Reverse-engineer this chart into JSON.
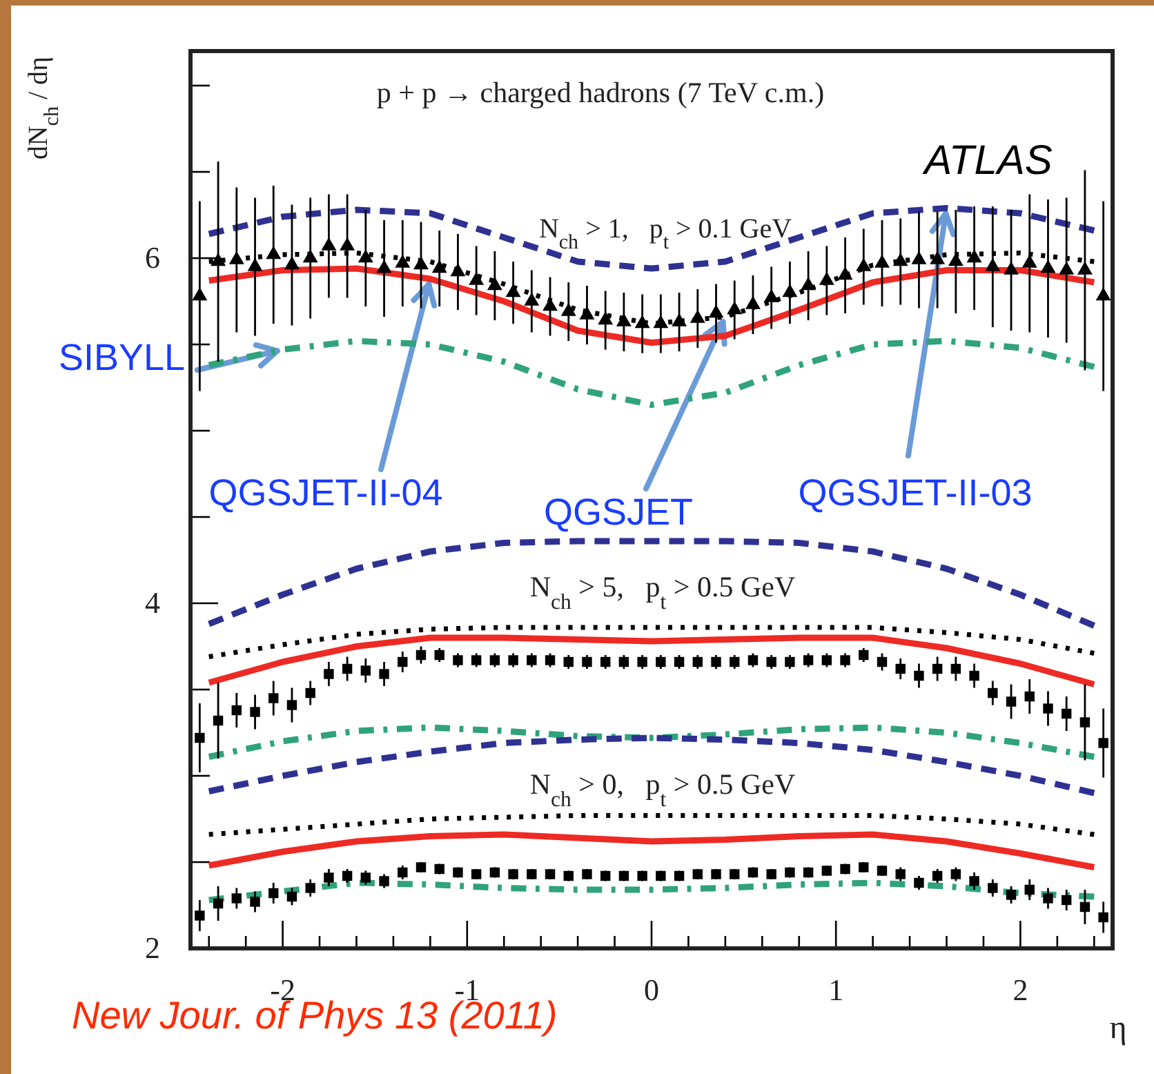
{
  "chart_data": {
    "type": "line",
    "ylabel": "dN$_{ch}$ / dη",
    "xlabel": "η",
    "xlim": [
      -2.5,
      2.5
    ],
    "ylim": [
      2,
      7.2
    ],
    "xticks": [
      {
        "value": -2.4,
        "label": null
      },
      {
        "value": -2.2,
        "label": null
      },
      -2,
      {
        "value": -1.8,
        "label": null
      },
      {
        "value": -1.6,
        "label": null
      },
      {
        "value": -1.4,
        "label": null
      },
      {
        "value": -1.2,
        "label": null
      },
      -1,
      {
        "value": -0.8,
        "label": null
      },
      {
        "value": -0.6,
        "label": null
      },
      {
        "value": -0.4,
        "label": null
      },
      {
        "value": -0.2,
        "label": null
      },
      0,
      {
        "value": 0.2,
        "label": null
      },
      {
        "value": 0.4,
        "label": null
      },
      {
        "value": 0.6,
        "label": null
      },
      {
        "value": 0.8,
        "label": null
      },
      1,
      {
        "value": 1.2,
        "label": null
      },
      {
        "value": 1.4,
        "label": null
      },
      {
        "value": 1.6,
        "label": null
      },
      {
        "value": 1.8,
        "label": null
      },
      2,
      {
        "value": 2.2,
        "label": null
      },
      {
        "value": 2.4,
        "label": null
      }
    ],
    "yticks": [
      2,
      {
        "value": 2.5,
        "label": null
      },
      {
        "value": 3,
        "label": null
      },
      {
        "value": 3.5,
        "label": null
      },
      4,
      {
        "value": 4.5,
        "label": null
      },
      {
        "value": 5,
        "label": null
      },
      {
        "value": 5.5,
        "label": null
      },
      6,
      {
        "value": 6.5,
        "label": null
      },
      {
        "value": 7,
        "label": null
      }
    ],
    "grid": false,
    "annotations": [
      "p + p → charged hadrons (7 TeV c.m.)",
      "N$_{ch}$ > 1,   p$_{t}$ > 0.1 GeV",
      "N$_{ch}$ > 5,   p$_{t}$ > 0.5 GeV",
      "N$_{ch}$ > 0,   p$_{t}$ > 0.5 GeV",
      "ATLAS",
      {
        "text": "SIBYLL",
        "x": -2.0,
        "y": 5.47
      },
      {
        "text": "QGSJET-II-04",
        "x": -1.2,
        "y": 5.88
      },
      {
        "text": "QGSJET",
        "x": 0.4,
        "y": 5.66
      },
      {
        "text": "QGSJET-II-03",
        "x": 1.6,
        "y": 6.29
      },
      "New Jour. of Phys 13 (2011)"
    ],
    "series": [
      {
        "type": "scatter",
        "color": "#000000",
        "marker": "triangle",
        "x": [
          -2.45,
          -2.35,
          -2.25,
          -2.15,
          -2.05,
          -1.95,
          -1.85,
          -1.75,
          -1.65,
          -1.55,
          -1.45,
          -1.35,
          -1.25,
          -1.15,
          -1.05,
          -0.95,
          -0.85,
          -0.75,
          -0.65,
          -0.55,
          -0.45,
          -0.35,
          -0.25,
          -0.15,
          -0.05,
          0.05,
          0.15,
          0.25,
          0.35,
          0.45,
          0.55,
          0.65,
          0.75,
          0.85,
          0.95,
          1.05,
          1.15,
          1.25,
          1.35,
          1.45,
          1.55,
          1.65,
          1.75,
          1.85,
          1.95,
          2.05,
          2.15,
          2.25,
          2.35,
          2.45
        ],
        "values": [
          5.78,
          5.98,
          5.99,
          5.95,
          6.02,
          5.96,
          6.0,
          6.07,
          6.07,
          6.0,
          5.94,
          5.97,
          5.96,
          5.94,
          5.92,
          5.87,
          5.84,
          5.8,
          5.75,
          5.72,
          5.69,
          5.67,
          5.64,
          5.63,
          5.62,
          5.62,
          5.63,
          5.65,
          5.68,
          5.7,
          5.73,
          5.77,
          5.8,
          5.84,
          5.87,
          5.9,
          5.95,
          5.97,
          5.98,
          5.99,
          5.99,
          5.98,
          6.0,
          5.95,
          5.93,
          5.97,
          5.94,
          5.93,
          5.93,
          5.78
        ],
        "errors": [
          0.55,
          0.58,
          0.42,
          0.4,
          0.4,
          0.35,
          0.35,
          0.3,
          0.3,
          0.28,
          0.28,
          0.25,
          0.25,
          0.22,
          0.22,
          0.2,
          0.2,
          0.18,
          0.18,
          0.17,
          0.17,
          0.17,
          0.17,
          0.17,
          0.17,
          0.17,
          0.17,
          0.17,
          0.17,
          0.17,
          0.17,
          0.18,
          0.18,
          0.2,
          0.2,
          0.22,
          0.22,
          0.25,
          0.25,
          0.28,
          0.28,
          0.3,
          0.3,
          0.35,
          0.35,
          0.4,
          0.4,
          0.42,
          0.58,
          0.55
        ]
      },
      {
        "color": "#2e3192",
        "line_style": "dashed",
        "x": [
          -2.4,
          -2,
          -1.6,
          -1.2,
          -0.8,
          -0.4,
          0,
          0.4,
          0.8,
          1.2,
          1.6,
          2,
          2.4
        ],
        "values": [
          6.14,
          6.24,
          6.28,
          6.26,
          6.12,
          5.98,
          5.94,
          5.98,
          6.12,
          6.26,
          6.29,
          6.26,
          6.16
        ]
      },
      {
        "color": "#000000",
        "line_style": "dotted",
        "x": [
          -2.4,
          -2,
          -1.6,
          -1.2,
          -0.8,
          -0.4,
          0,
          0.4,
          0.8,
          1.2,
          1.6,
          2,
          2.4
        ],
        "values": [
          5.98,
          6.02,
          6.03,
          5.98,
          5.85,
          5.7,
          5.62,
          5.66,
          5.8,
          5.96,
          6.02,
          6.03,
          5.98
        ]
      },
      {
        "color": "#ee2a24",
        "line_style": "solid",
        "x": [
          -2.4,
          -2,
          -1.6,
          -1.2,
          -0.8,
          -0.4,
          0,
          0.4,
          0.8,
          1.2,
          1.6,
          2,
          2.4
        ],
        "values": [
          5.87,
          5.93,
          5.94,
          5.88,
          5.75,
          5.58,
          5.51,
          5.55,
          5.7,
          5.86,
          5.93,
          5.93,
          5.86
        ]
      },
      {
        "color": "#2fa37a",
        "line_style": "dashdot",
        "x": [
          -2.4,
          -2,
          -1.6,
          -1.2,
          -0.8,
          -0.4,
          0,
          0.4,
          0.8,
          1.2,
          1.6,
          2,
          2.4
        ],
        "values": [
          5.38,
          5.47,
          5.52,
          5.5,
          5.4,
          5.24,
          5.15,
          5.22,
          5.38,
          5.5,
          5.52,
          5.48,
          5.37
        ]
      },
      {
        "type": "scatter",
        "color": "#000000",
        "marker": "square",
        "x": [
          -2.45,
          -2.35,
          -2.25,
          -2.15,
          -2.05,
          -1.95,
          -1.85,
          -1.75,
          -1.65,
          -1.55,
          -1.45,
          -1.35,
          -1.25,
          -1.15,
          -1.05,
          -0.95,
          -0.85,
          -0.75,
          -0.65,
          -0.55,
          -0.45,
          -0.35,
          -0.25,
          -0.15,
          -0.05,
          0.05,
          0.15,
          0.25,
          0.35,
          0.45,
          0.55,
          0.65,
          0.75,
          0.85,
          0.95,
          1.05,
          1.15,
          1.25,
          1.35,
          1.45,
          1.55,
          1.65,
          1.75,
          1.85,
          1.95,
          2.05,
          2.15,
          2.25,
          2.35,
          2.45
        ],
        "values": [
          3.22,
          3.32,
          3.38,
          3.37,
          3.45,
          3.41,
          3.48,
          3.59,
          3.62,
          3.61,
          3.59,
          3.66,
          3.7,
          3.7,
          3.67,
          3.67,
          3.67,
          3.67,
          3.67,
          3.67,
          3.66,
          3.66,
          3.66,
          3.66,
          3.66,
          3.66,
          3.66,
          3.66,
          3.66,
          3.66,
          3.67,
          3.66,
          3.66,
          3.67,
          3.67,
          3.67,
          3.7,
          3.66,
          3.62,
          3.58,
          3.62,
          3.62,
          3.58,
          3.48,
          3.43,
          3.46,
          3.39,
          3.36,
          3.31,
          3.19
        ],
        "errors": [
          0.2,
          0.22,
          0.1,
          0.1,
          0.1,
          0.1,
          0.07,
          0.07,
          0.07,
          0.07,
          0.07,
          0.06,
          0.05,
          0.04,
          0.04,
          0.04,
          0.04,
          0.04,
          0.04,
          0.04,
          0.04,
          0.04,
          0.04,
          0.04,
          0.04,
          0.04,
          0.04,
          0.04,
          0.04,
          0.04,
          0.04,
          0.04,
          0.04,
          0.04,
          0.04,
          0.04,
          0.04,
          0.05,
          0.06,
          0.07,
          0.07,
          0.07,
          0.07,
          0.07,
          0.1,
          0.1,
          0.1,
          0.1,
          0.22,
          0.2
        ]
      },
      {
        "color": "#2e3192",
        "line_style": "dashed",
        "x": [
          -2.4,
          -2,
          -1.6,
          -1.2,
          -0.8,
          -0.4,
          0,
          0.4,
          0.8,
          1.2,
          1.6,
          2,
          2.4
        ],
        "values": [
          3.88,
          4.05,
          4.2,
          4.3,
          4.35,
          4.36,
          4.36,
          4.36,
          4.35,
          4.3,
          4.2,
          4.05,
          3.87
        ]
      },
      {
        "color": "#000000",
        "line_style": "dotted",
        "x": [
          -2.4,
          -2,
          -1.6,
          -1.2,
          -0.8,
          -0.4,
          0,
          0.4,
          0.8,
          1.2,
          1.6,
          2,
          2.4
        ],
        "values": [
          3.69,
          3.76,
          3.82,
          3.85,
          3.86,
          3.86,
          3.86,
          3.86,
          3.86,
          3.86,
          3.83,
          3.79,
          3.71
        ]
      },
      {
        "color": "#ee2a24",
        "line_style": "solid",
        "x": [
          -2.4,
          -2,
          -1.6,
          -1.2,
          -0.8,
          -0.4,
          0,
          0.4,
          0.8,
          1.2,
          1.6,
          2,
          2.4
        ],
        "values": [
          3.54,
          3.66,
          3.75,
          3.8,
          3.8,
          3.79,
          3.78,
          3.79,
          3.8,
          3.8,
          3.74,
          3.65,
          3.53
        ]
      },
      {
        "color": "#2fa37a",
        "line_style": "dashdot",
        "x": [
          -2.4,
          -2,
          -1.6,
          -1.2,
          -0.8,
          -0.4,
          0,
          0.4,
          0.8,
          1.2,
          1.6,
          2,
          2.4
        ],
        "values": [
          3.11,
          3.2,
          3.26,
          3.28,
          3.26,
          3.23,
          3.22,
          3.24,
          3.27,
          3.28,
          3.25,
          3.19,
          3.11
        ]
      },
      {
        "type": "scatter",
        "color": "#000000",
        "marker": "square",
        "x": [
          -2.45,
          -2.35,
          -2.25,
          -2.15,
          -2.05,
          -1.95,
          -1.85,
          -1.75,
          -1.65,
          -1.55,
          -1.45,
          -1.35,
          -1.25,
          -1.15,
          -1.05,
          -0.95,
          -0.85,
          -0.75,
          -0.65,
          -0.55,
          -0.45,
          -0.35,
          -0.25,
          -0.15,
          -0.05,
          0.05,
          0.15,
          0.25,
          0.35,
          0.45,
          0.55,
          0.65,
          0.75,
          0.85,
          0.95,
          1.05,
          1.15,
          1.25,
          1.35,
          1.45,
          1.55,
          1.65,
          1.75,
          1.85,
          1.95,
          2.05,
          2.15,
          2.25,
          2.35,
          2.45
        ],
        "values": [
          2.19,
          2.26,
          2.29,
          2.27,
          2.32,
          2.3,
          2.35,
          2.41,
          2.42,
          2.41,
          2.39,
          2.44,
          2.47,
          2.46,
          2.44,
          2.43,
          2.44,
          2.43,
          2.43,
          2.43,
          2.42,
          2.43,
          2.42,
          2.42,
          2.42,
          2.42,
          2.42,
          2.43,
          2.43,
          2.43,
          2.44,
          2.43,
          2.44,
          2.44,
          2.45,
          2.46,
          2.47,
          2.45,
          2.43,
          2.38,
          2.42,
          2.43,
          2.39,
          2.35,
          2.31,
          2.34,
          2.29,
          2.28,
          2.24,
          2.18
        ],
        "errors": [
          0.09,
          0.1,
          0.06,
          0.06,
          0.06,
          0.05,
          0.05,
          0.05,
          0.04,
          0.04,
          0.04,
          0.04,
          0.03,
          0.03,
          0.03,
          0.03,
          0.03,
          0.03,
          0.03,
          0.03,
          0.03,
          0.03,
          0.03,
          0.03,
          0.03,
          0.03,
          0.03,
          0.03,
          0.03,
          0.03,
          0.03,
          0.03,
          0.03,
          0.03,
          0.03,
          0.03,
          0.03,
          0.03,
          0.04,
          0.04,
          0.04,
          0.04,
          0.05,
          0.05,
          0.05,
          0.06,
          0.06,
          0.06,
          0.1,
          0.09
        ]
      },
      {
        "color": "#2e3192",
        "line_style": "dashed",
        "x": [
          -2.4,
          -2,
          -1.6,
          -1.2,
          -0.8,
          -0.4,
          0,
          0.4,
          0.8,
          1.2,
          1.6,
          2,
          2.4
        ],
        "values": [
          2.91,
          3.0,
          3.08,
          3.14,
          3.19,
          3.21,
          3.22,
          3.21,
          3.19,
          3.15,
          3.08,
          3.0,
          2.9
        ]
      },
      {
        "color": "#000000",
        "line_style": "dotted",
        "x": [
          -2.4,
          -2,
          -1.6,
          -1.2,
          -0.8,
          -0.4,
          0,
          0.4,
          0.8,
          1.2,
          1.6,
          2,
          2.4
        ],
        "values": [
          2.66,
          2.69,
          2.72,
          2.75,
          2.76,
          2.77,
          2.77,
          2.77,
          2.77,
          2.77,
          2.75,
          2.72,
          2.66
        ]
      },
      {
        "color": "#ee2a24",
        "line_style": "solid",
        "x": [
          -2.4,
          -2,
          -1.6,
          -1.2,
          -0.8,
          -0.4,
          0,
          0.4,
          0.8,
          1.2,
          1.6,
          2,
          2.4
        ],
        "values": [
          2.48,
          2.56,
          2.62,
          2.65,
          2.66,
          2.64,
          2.62,
          2.63,
          2.65,
          2.66,
          2.62,
          2.55,
          2.47
        ]
      },
      {
        "color": "#2fa37a",
        "line_style": "dashdot",
        "x": [
          -2.4,
          -2,
          -1.6,
          -1.2,
          -0.8,
          -0.4,
          0,
          0.4,
          0.8,
          1.2,
          1.6,
          2,
          2.4
        ],
        "values": [
          2.28,
          2.33,
          2.38,
          2.37,
          2.35,
          2.34,
          2.34,
          2.35,
          2.37,
          2.38,
          2.36,
          2.32,
          2.3
        ]
      }
    ]
  }
}
